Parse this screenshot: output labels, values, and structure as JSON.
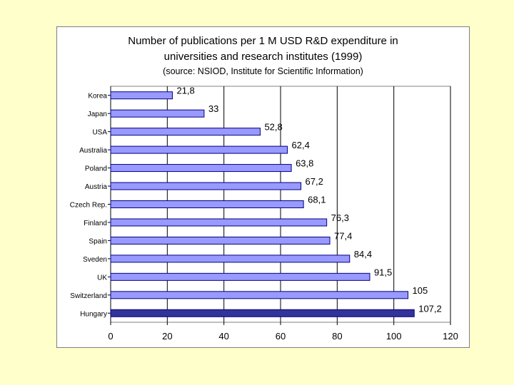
{
  "chart_data": {
    "type": "bar",
    "orientation": "horizontal",
    "title_line1": "Number of publications per 1 M USD R&D expenditure in",
    "title_line2": "universities and research institutes (1999)",
    "subtitle": "(source: NSIOD, Institute for Scientific Information)",
    "categories": [
      "Korea",
      "Japan",
      "USA",
      "Australia",
      "Poland",
      "Austria",
      "Czech Rep.",
      "Finland",
      "Spain",
      "Sveden",
      "UK",
      "Switzerland",
      "Hungary"
    ],
    "values": [
      21.8,
      33,
      52.8,
      62.4,
      63.8,
      67.2,
      68.1,
      76.3,
      77.4,
      84.4,
      91.5,
      105,
      107.2
    ],
    "value_labels": [
      "21,8",
      "33",
      "52,8",
      "62,4",
      "63,8",
      "67,2",
      "68,1",
      "76,3",
      "77,4",
      "84,4",
      "91,5",
      "105",
      "107,2"
    ],
    "highlighted": "Hungary",
    "xlim": [
      0,
      120
    ],
    "x_ticks": [
      0,
      20,
      40,
      60,
      80,
      100,
      120
    ],
    "grid": true,
    "legend": "none",
    "bar_color": "#9999ff",
    "highlight_color": "#333399",
    "bar_outline": "#000080"
  }
}
